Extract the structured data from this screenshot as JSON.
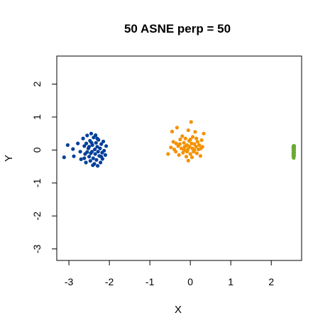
{
  "chart_data": {
    "type": "scatter",
    "title": "50 ASNE perp = 50",
    "xlabel": "X",
    "ylabel": "Y",
    "xlim": [
      -3.3,
      2.75
    ],
    "ylim": [
      -3.35,
      2.85
    ],
    "x_ticks": [
      -3,
      -2,
      -1,
      0,
      1,
      2
    ],
    "y_ticks": [
      -3,
      -2,
      -1,
      0,
      1,
      2
    ],
    "x_tick_labels": [
      "-3",
      "-2",
      "-1",
      "0",
      "1",
      "2"
    ],
    "y_tick_labels": [
      "-3",
      "-2",
      "-1",
      "0",
      "1",
      "2"
    ],
    "grid": false,
    "legend": "none",
    "series": [
      {
        "color": "#003f9a",
        "points": [
          [
            -3.12,
            -0.22
          ],
          [
            -3.03,
            0.15
          ],
          [
            -2.9,
            0.03
          ],
          [
            -2.88,
            -0.19
          ],
          [
            -2.78,
            0.2
          ],
          [
            -2.72,
            -0.05
          ],
          [
            -2.7,
            -0.28
          ],
          [
            -2.65,
            0.35
          ],
          [
            -2.62,
            0.12
          ],
          [
            -2.6,
            -0.12
          ],
          [
            -2.58,
            -0.38
          ],
          [
            -2.55,
            0.44
          ],
          [
            -2.52,
            0.05
          ],
          [
            -2.5,
            -0.2
          ],
          [
            -2.48,
            0.28
          ],
          [
            -2.47,
            -0.33
          ],
          [
            -2.45,
            0.5
          ],
          [
            -2.43,
            -0.05
          ],
          [
            -2.42,
            0.15
          ],
          [
            -2.4,
            -0.25
          ],
          [
            -2.39,
            0.38
          ],
          [
            -2.37,
            -0.42
          ],
          [
            -2.36,
            0.02
          ],
          [
            -2.35,
            -0.12
          ],
          [
            -2.33,
            0.22
          ],
          [
            -2.32,
            -0.3
          ],
          [
            -2.3,
            0.1
          ],
          [
            -2.29,
            -0.48
          ],
          [
            -2.27,
            0.31
          ],
          [
            -2.25,
            -0.18
          ],
          [
            -2.23,
            0.05
          ],
          [
            -2.22,
            -0.38
          ],
          [
            -2.2,
            0.18
          ],
          [
            -2.18,
            -0.08
          ],
          [
            -2.17,
            -0.27
          ],
          [
            -2.15,
            0.26
          ],
          [
            -2.13,
            -0.02
          ],
          [
            -2.1,
            -0.15
          ],
          [
            -2.08,
            0.12
          ],
          [
            -2.55,
            -0.06
          ],
          [
            -2.62,
            -0.25
          ],
          [
            -2.44,
            0.22
          ],
          [
            -2.34,
            0.45
          ],
          [
            -2.28,
            -0.05
          ],
          [
            -2.5,
            0.1
          ],
          [
            -2.41,
            -0.46
          ],
          [
            -2.57,
            0.2
          ],
          [
            -2.2,
            -0.2
          ],
          [
            -2.46,
            -0.1
          ],
          [
            -2.3,
            0.35
          ]
        ]
      },
      {
        "color": "#f39200",
        "points": [
          [
            -0.55,
            -0.12
          ],
          [
            -0.48,
            0.08
          ],
          [
            -0.45,
            0.56
          ],
          [
            -0.42,
            0.25
          ],
          [
            -0.4,
            0.02
          ],
          [
            -0.36,
            -0.05
          ],
          [
            -0.33,
            0.68
          ],
          [
            -0.3,
            0.12
          ],
          [
            -0.28,
            -0.15
          ],
          [
            -0.25,
            0.32
          ],
          [
            -0.22,
            0.05
          ],
          [
            -0.2,
            0.42
          ],
          [
            -0.18,
            -0.08
          ],
          [
            -0.16,
            0.22
          ],
          [
            -0.14,
            0.1
          ],
          [
            -0.12,
            0.35
          ],
          [
            -0.1,
            -0.2
          ],
          [
            -0.08,
            0.15
          ],
          [
            -0.06,
            0.02
          ],
          [
            -0.05,
            -0.32
          ],
          [
            -0.03,
            0.28
          ],
          [
            -0.02,
            0.1
          ],
          [
            0.0,
            -0.12
          ],
          [
            0.02,
            0.85
          ],
          [
            0.03,
            0.2
          ],
          [
            0.05,
            0.05
          ],
          [
            0.06,
            0.4
          ],
          [
            0.08,
            -0.05
          ],
          [
            0.1,
            0.18
          ],
          [
            0.12,
            0.55
          ],
          [
            0.14,
            0.1
          ],
          [
            0.16,
            -0.1
          ],
          [
            0.18,
            0.25
          ],
          [
            0.2,
            0.02
          ],
          [
            0.22,
            0.15
          ],
          [
            0.25,
            -0.18
          ],
          [
            0.28,
            0.3
          ],
          [
            0.3,
            0.1
          ],
          [
            0.33,
            0.5
          ],
          [
            -0.26,
            0.18
          ],
          [
            -0.08,
            -0.05
          ],
          [
            0.0,
            0.32
          ],
          [
            -0.15,
            0.0
          ],
          [
            0.1,
            0.0
          ],
          [
            0.04,
            -0.22
          ],
          [
            -0.35,
            0.2
          ],
          [
            0.15,
            0.35
          ],
          [
            -0.05,
            0.6
          ],
          [
            0.26,
            0.05
          ],
          [
            -0.11,
            0.12
          ]
        ]
      },
      {
        "color": "#6aaa38",
        "points": [
          [
            2.55,
            -0.22
          ],
          [
            2.56,
            -0.18
          ],
          [
            2.55,
            -0.14
          ],
          [
            2.56,
            -0.1
          ],
          [
            2.55,
            -0.06
          ],
          [
            2.56,
            -0.02
          ],
          [
            2.55,
            0.02
          ],
          [
            2.56,
            0.06
          ],
          [
            2.55,
            0.1
          ],
          [
            2.56,
            0.13
          ],
          [
            2.555,
            -0.2
          ],
          [
            2.555,
            -0.12
          ],
          [
            2.555,
            -0.04
          ],
          [
            2.555,
            0.04
          ],
          [
            2.555,
            0.11
          ],
          [
            2.565,
            -0.16
          ],
          [
            2.565,
            -0.08
          ],
          [
            2.565,
            0.0
          ],
          [
            2.565,
            0.08
          ],
          [
            2.545,
            -0.1
          ],
          [
            2.545,
            0.0
          ],
          [
            2.545,
            0.08
          ],
          [
            2.55,
            -0.16
          ],
          [
            2.56,
            0.04
          ],
          [
            2.555,
            -0.24
          ],
          [
            2.56,
            -0.06
          ],
          [
            2.55,
            0.12
          ],
          [
            2.565,
            0.12
          ],
          [
            2.545,
            -0.18
          ],
          [
            2.555,
            0.0
          ]
        ]
      }
    ]
  }
}
